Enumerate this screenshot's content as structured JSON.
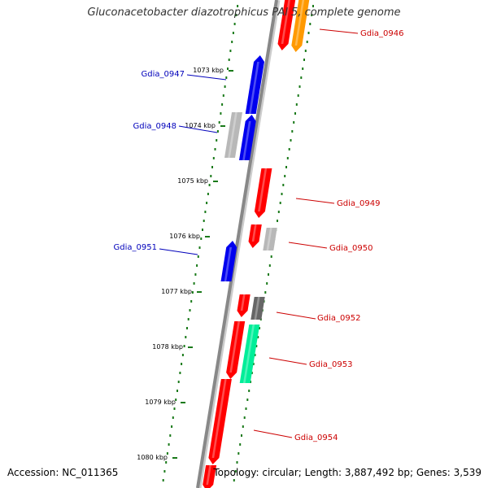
{
  "title": "Gluconacetobacter diazotrophicus PAl 5, complete genome",
  "accession": "Accession: NC_011365",
  "summary": "Topology: circular; Length: 3,887,492 bp; Genes: 3,539",
  "colors": {
    "backbone": "#888888",
    "ticks": "#1a7a1a",
    "plus_label": "#cc0000",
    "minus_label": "#0000bb",
    "red": "#ff0000",
    "blue": "#0000ee",
    "orange": "#ff9900",
    "light_gray": "#b8b8b8",
    "dark_gray": "#666666",
    "aquamarine": "#00ee99"
  },
  "scale_ticks": [
    "1073 kbp",
    "1074 kbp",
    "1075 kbp",
    "1076 kbp",
    "1077 kbp",
    "1078 kbp",
    "1079 kbp",
    "1080 kbp"
  ],
  "gene_labels": [
    {
      "name": "Gdia_0946",
      "strand": "plus"
    },
    {
      "name": "Gdia_0947",
      "strand": "minus"
    },
    {
      "name": "Gdia_0948",
      "strand": "minus"
    },
    {
      "name": "Gdia_0949",
      "strand": "plus"
    },
    {
      "name": "Gdia_0950",
      "strand": "plus"
    },
    {
      "name": "Gdia_0951",
      "strand": "minus"
    },
    {
      "name": "Gdia_0952",
      "strand": "plus"
    },
    {
      "name": "Gdia_0953",
      "strand": "plus"
    },
    {
      "name": "Gdia_0954",
      "strand": "plus"
    }
  ],
  "features": [
    {
      "id": "gene-a",
      "strand": "plus",
      "color": "red",
      "direction": "down"
    },
    {
      "id": "gene-b",
      "strand": "plus",
      "color": "orange",
      "direction": "down"
    },
    {
      "id": "gene-0947",
      "strand": "minus",
      "color": "blue",
      "direction": "up"
    },
    {
      "id": "gene-0948-pseudo",
      "strand": "minus",
      "color": "light_gray",
      "direction": "none"
    },
    {
      "id": "gene-0948",
      "strand": "minus",
      "color": "blue",
      "direction": "up"
    },
    {
      "id": "gene-0949",
      "strand": "plus",
      "color": "red",
      "direction": "down"
    },
    {
      "id": "gene-0950",
      "strand": "plus",
      "color": "red",
      "direction": "down"
    },
    {
      "id": "gene-0950-pseudo",
      "strand": "plus",
      "color": "light_gray",
      "direction": "none"
    },
    {
      "id": "gene-0951",
      "strand": "minus",
      "color": "blue",
      "direction": "up"
    },
    {
      "id": "gene-0952",
      "strand": "plus",
      "color": "red",
      "direction": "down"
    },
    {
      "id": "gene-0952-other",
      "strand": "plus",
      "color": "dark_gray",
      "direction": "none"
    },
    {
      "id": "gene-0953",
      "strand": "plus",
      "color": "red",
      "direction": "down"
    },
    {
      "id": "gene-0953-other",
      "strand": "plus",
      "color": "aquamarine",
      "direction": "none"
    },
    {
      "id": "gene-0954",
      "strand": "plus",
      "color": "red",
      "direction": "down"
    },
    {
      "id": "gene-tail",
      "strand": "plus",
      "color": "red",
      "direction": "down"
    }
  ]
}
